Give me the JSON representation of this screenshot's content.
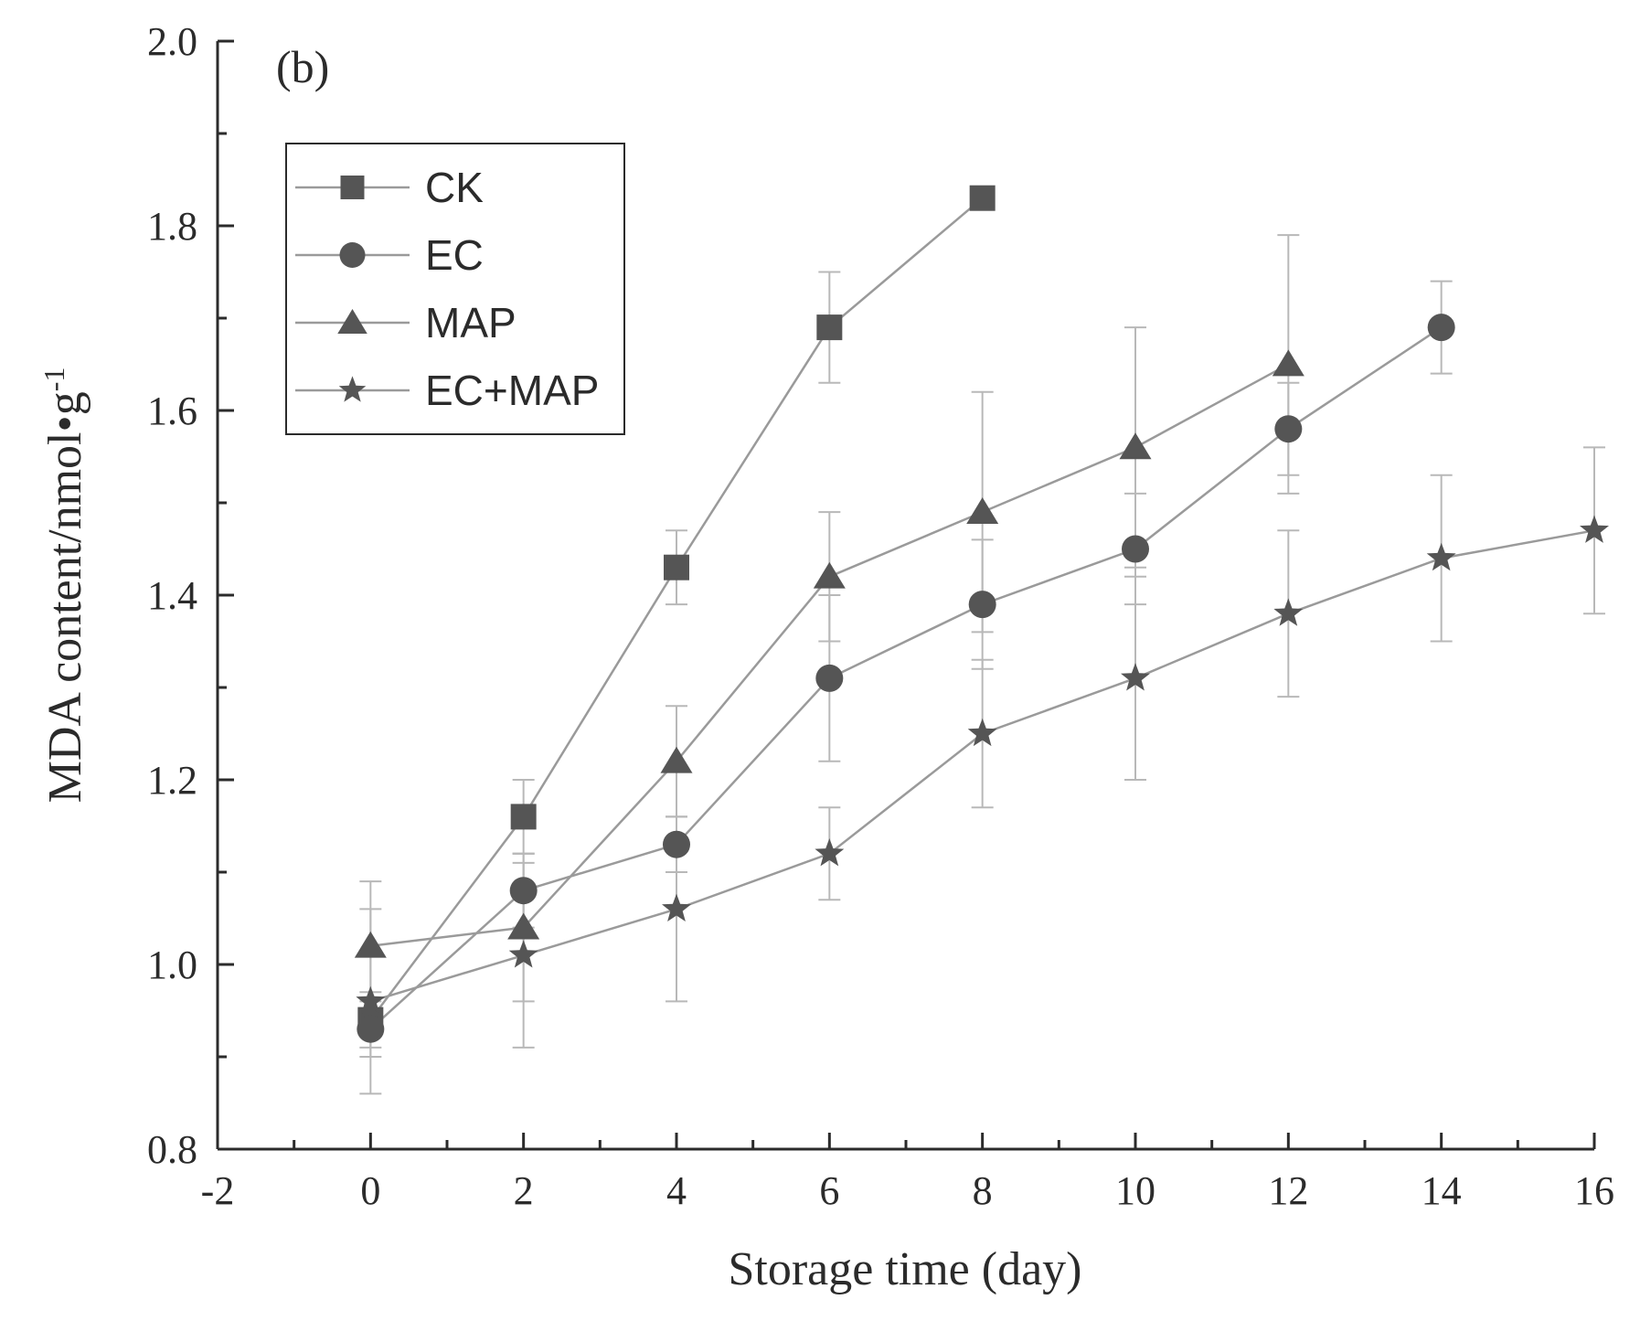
{
  "chart_data": {
    "type": "line",
    "panel_label": "(b)",
    "xlabel": "Storage time (day)",
    "ylabel_main": "MDA content/nmol",
    "ylabel_dot": "•",
    "ylabel_g": "g",
    "ylabel_exp": "-1",
    "xlim": [
      -2,
      16
    ],
    "ylim": [
      0.8,
      2.0
    ],
    "xticks": [
      "-2",
      "0",
      "2",
      "4",
      "6",
      "8",
      "10",
      "12",
      "14",
      "16"
    ],
    "yticks": [
      "0.8",
      "1.0",
      "1.2",
      "1.4",
      "1.6",
      "1.8",
      "2.0"
    ],
    "legend_position": "top-left",
    "colors": {
      "line": "#9a9a9a",
      "marker": "#555555",
      "axis": "#2b2b2b",
      "error": "#b8b8b8"
    },
    "series": [
      {
        "name": "CK",
        "marker": "square",
        "x": [
          0,
          2,
          4,
          6,
          8
        ],
        "y": [
          0.94,
          1.16,
          1.43,
          1.69,
          1.83
        ],
        "err": [
          0.03,
          0.04,
          0.04,
          0.06,
          0.01
        ]
      },
      {
        "name": "EC",
        "marker": "circle",
        "x": [
          0,
          2,
          4,
          6,
          8,
          10,
          12,
          14
        ],
        "y": [
          0.93,
          1.08,
          1.13,
          1.31,
          1.39,
          1.45,
          1.58,
          1.69
        ],
        "err": [
          0.03,
          0.04,
          0.03,
          0.09,
          0.07,
          0.06,
          0.05,
          0.05
        ]
      },
      {
        "name": "MAP",
        "marker": "triangle",
        "x": [
          0,
          2,
          4,
          6,
          8,
          10,
          12
        ],
        "y": [
          1.02,
          1.04,
          1.22,
          1.42,
          1.49,
          1.56,
          1.65
        ],
        "err": [
          0.07,
          0.08,
          0.06,
          0.07,
          0.13,
          0.13,
          0.14
        ]
      },
      {
        "name": "EC+MAP",
        "marker": "star",
        "x": [
          0,
          2,
          4,
          6,
          8,
          10,
          12,
          14,
          16
        ],
        "y": [
          0.96,
          1.01,
          1.06,
          1.12,
          1.25,
          1.31,
          1.38,
          1.44,
          1.47
        ],
        "err": [
          0.1,
          0.1,
          0.1,
          0.05,
          0.08,
          0.11,
          0.09,
          0.09,
          0.09
        ]
      }
    ]
  }
}
